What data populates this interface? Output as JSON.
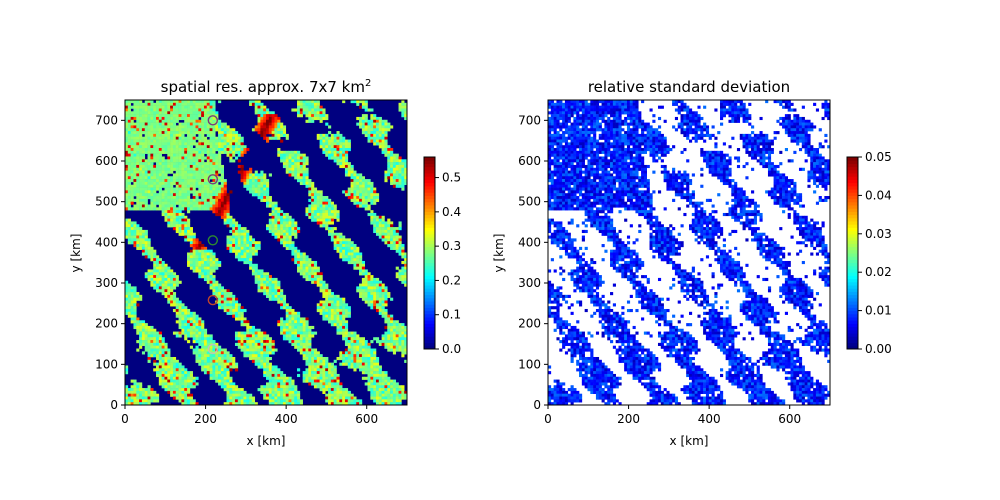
{
  "chart_data": [
    {
      "type": "heatmap",
      "title": "spatial res. approx. 7x7 km",
      "title_superscript": "2",
      "xlabel": "x [km]",
      "ylabel": "y [km]",
      "xlim": [
        0,
        700
      ],
      "ylim": [
        0,
        750
      ],
      "xticks": [
        "0",
        "200",
        "400",
        "600"
      ],
      "yticks": [
        "0",
        "100",
        "200",
        "300",
        "400",
        "500",
        "600",
        "700"
      ],
      "colormap": "jet",
      "colorbar": {
        "range": [
          0.0,
          0.56
        ],
        "ticks": [
          "0.0",
          "0.1",
          "0.2",
          "0.3",
          "0.4",
          "0.5"
        ]
      },
      "markers": [
        {
          "x": 218,
          "y": 700,
          "color": "#7a3b7a"
        },
        {
          "x": 218,
          "y": 555,
          "color": "#7a3b7a"
        },
        {
          "x": 218,
          "y": 405,
          "color": "#2e8b2e"
        },
        {
          "x": 218,
          "y": 258,
          "color": "#c0452a"
        },
        {
          "x": 218,
          "y": 138,
          "color": "#c0c0c0"
        }
      ]
    },
    {
      "type": "heatmap",
      "title": "relative standard deviation",
      "xlabel": "x [km]",
      "ylabel": "y [km]",
      "xlim": [
        0,
        700
      ],
      "ylim": [
        0,
        750
      ],
      "xticks": [
        "0",
        "200",
        "400",
        "600"
      ],
      "yticks": [
        "0",
        "100",
        "200",
        "300",
        "400",
        "500",
        "600",
        "700"
      ],
      "colormap": "jet",
      "colorbar": {
        "range": [
          0.0,
          0.05
        ],
        "ticks": [
          "0.00",
          "0.01",
          "0.02",
          "0.03",
          "0.04",
          "0.05"
        ]
      },
      "missing_color": "#ffffff"
    }
  ]
}
